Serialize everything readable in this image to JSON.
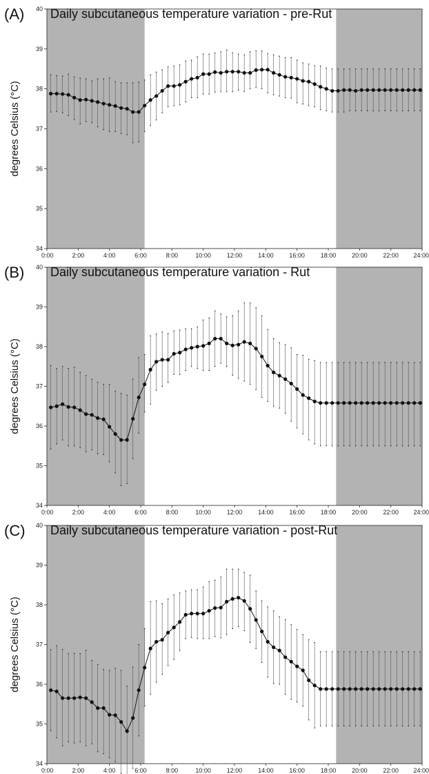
{
  "chart_data": [
    {
      "type": "line",
      "panel_label": "(A)",
      "title": "Daily subcutaneous temperature variation - pre-Rut",
      "ylabel": "degrees Celsius (°C)",
      "xlabel": "",
      "xlim": [
        0,
        24
      ],
      "ylim": [
        34,
        40
      ],
      "x_tick_labels": [
        "0:00",
        "2:00",
        "4:00",
        "6:00",
        "8:00",
        "10:00",
        "12:00",
        "14:00",
        "16:00",
        "18:00",
        "20:00",
        "22:00",
        "24:00"
      ],
      "y_tick_labels": [
        "34",
        "35",
        "36",
        "37",
        "38",
        "39",
        "40"
      ],
      "shaded_regions": [
        [
          0,
          6.25
        ],
        [
          18.5,
          24
        ]
      ],
      "series": [
        {
          "x": [
            0.25,
            0.625,
            1.0,
            1.375,
            1.75,
            2.125,
            2.5,
            2.875,
            3.25,
            3.625,
            4.0,
            4.375,
            4.75,
            5.125,
            5.5,
            5.875,
            6.25,
            6.625,
            7.0,
            7.375,
            7.75,
            8.125,
            8.5,
            8.875,
            9.25,
            9.625,
            10.0,
            10.375,
            10.75,
            11.125,
            11.5,
            11.875,
            12.25,
            12.625,
            13.0,
            13.375,
            13.75,
            14.125,
            14.5,
            14.875,
            15.25,
            15.625,
            16.0,
            16.375,
            16.75,
            17.125,
            17.5,
            17.875,
            18.25,
            18.625,
            19.0,
            19.375,
            19.75,
            20.125,
            20.5,
            20.875,
            21.25,
            21.625,
            22.0,
            22.375,
            22.75,
            23.125,
            23.5,
            23.875
          ],
          "mean": [
            37.88,
            37.88,
            37.87,
            37.85,
            37.78,
            37.72,
            37.73,
            37.7,
            37.67,
            37.63,
            37.6,
            37.57,
            37.52,
            37.5,
            37.42,
            37.42,
            37.58,
            37.72,
            37.82,
            37.95,
            38.07,
            38.07,
            38.1,
            38.18,
            38.25,
            38.28,
            38.37,
            38.37,
            38.42,
            38.4,
            38.43,
            38.43,
            38.43,
            38.4,
            38.4,
            38.47,
            38.48,
            38.48,
            38.4,
            38.35,
            38.3,
            38.28,
            38.25,
            38.2,
            38.18,
            38.12,
            38.05,
            38.0,
            37.95,
            37.95,
            37.97,
            37.97,
            37.95,
            37.97,
            37.97,
            37.97,
            37.97,
            37.97,
            37.97,
            37.97,
            37.97,
            37.97,
            37.97,
            37.97
          ],
          "upper": [
            38.35,
            38.33,
            38.32,
            38.37,
            38.3,
            38.27,
            38.25,
            38.2,
            38.25,
            38.25,
            38.27,
            38.18,
            38.15,
            38.15,
            38.15,
            38.17,
            38.22,
            38.35,
            38.42,
            38.48,
            38.55,
            38.57,
            38.6,
            38.7,
            38.72,
            38.8,
            38.87,
            38.87,
            38.9,
            38.93,
            38.97,
            38.9,
            38.87,
            38.85,
            38.93,
            38.95,
            38.95,
            38.88,
            38.85,
            38.82,
            38.78,
            38.78,
            38.72,
            38.65,
            38.62,
            38.58,
            38.57,
            38.52,
            38.5,
            38.5,
            38.5,
            38.5,
            38.5,
            38.5,
            38.5,
            38.5,
            38.5,
            38.5,
            38.5,
            38.5,
            38.5,
            38.5,
            38.5,
            38.5
          ],
          "lower": [
            37.42,
            37.43,
            37.4,
            37.33,
            37.23,
            37.12,
            37.18,
            37.15,
            37.05,
            36.98,
            36.93,
            36.93,
            36.88,
            36.85,
            36.65,
            36.67,
            36.93,
            37.08,
            37.22,
            37.4,
            37.55,
            37.58,
            37.6,
            37.67,
            37.78,
            37.78,
            37.87,
            37.87,
            37.92,
            37.93,
            37.93,
            37.93,
            37.97,
            37.93,
            38.0,
            38.03,
            38.0,
            37.9,
            37.85,
            37.82,
            37.78,
            37.77,
            37.65,
            37.62,
            37.58,
            37.55,
            37.48,
            37.45,
            37.42,
            37.42,
            37.42,
            37.45,
            37.45,
            37.45,
            37.45,
            37.45,
            37.45,
            37.45,
            37.45,
            37.45,
            37.45,
            37.45,
            37.45,
            37.45
          ]
        }
      ]
    },
    {
      "type": "line",
      "panel_label": "(B)",
      "title": "Daily subcutaneous temperature variation - Rut",
      "ylabel": "degrees Celsius (°C)",
      "xlabel": "",
      "xlim": [
        0,
        24
      ],
      "ylim": [
        34,
        40
      ],
      "x_tick_labels": [
        "0:00",
        "2:00",
        "4:00",
        "6:00",
        "8:00",
        "10:00",
        "12:00",
        "14:00",
        "16:00",
        "18:00",
        "20:00",
        "22:00",
        "24:00"
      ],
      "y_tick_labels": [
        "34",
        "35",
        "36",
        "37",
        "38",
        "39",
        "40"
      ],
      "shaded_regions": [
        [
          0,
          6.25
        ],
        [
          18.5,
          24
        ]
      ],
      "series": [
        {
          "x": [
            0.25,
            0.625,
            1.0,
            1.375,
            1.75,
            2.125,
            2.5,
            2.875,
            3.25,
            3.625,
            4.0,
            4.375,
            4.75,
            5.125,
            5.5,
            5.875,
            6.25,
            6.625,
            7.0,
            7.375,
            7.75,
            8.125,
            8.5,
            8.875,
            9.25,
            9.625,
            10.0,
            10.375,
            10.75,
            11.125,
            11.5,
            11.875,
            12.25,
            12.625,
            13.0,
            13.375,
            13.75,
            14.125,
            14.5,
            14.875,
            15.25,
            15.625,
            16.0,
            16.375,
            16.75,
            17.125,
            17.5,
            17.875,
            18.25,
            18.625,
            19.0,
            19.375,
            19.75,
            20.125,
            20.5,
            20.875,
            21.25,
            21.625,
            22.0,
            22.375,
            22.75,
            23.125,
            23.5,
            23.875
          ],
          "mean": [
            36.47,
            36.5,
            36.55,
            36.48,
            36.47,
            36.4,
            36.3,
            36.28,
            36.2,
            36.17,
            35.98,
            35.8,
            35.65,
            35.65,
            36.18,
            36.72,
            37.05,
            37.42,
            37.62,
            37.67,
            37.67,
            37.82,
            37.85,
            37.93,
            37.97,
            38.0,
            38.02,
            38.08,
            38.2,
            38.2,
            38.08,
            38.03,
            38.05,
            38.12,
            38.08,
            37.95,
            37.75,
            37.52,
            37.35,
            37.27,
            37.18,
            37.07,
            36.93,
            36.78,
            36.7,
            36.62,
            36.58,
            36.58,
            36.58,
            36.58,
            36.58,
            36.58,
            36.58,
            36.58,
            36.58,
            36.58,
            36.58,
            36.58,
            36.58,
            36.58,
            36.58,
            36.58,
            36.58,
            36.58
          ],
          "upper": [
            37.52,
            37.45,
            37.5,
            37.45,
            37.48,
            37.35,
            37.27,
            37.18,
            37.1,
            37.05,
            37.05,
            36.88,
            36.82,
            36.78,
            37.18,
            37.72,
            37.8,
            38.27,
            38.32,
            38.37,
            38.33,
            38.4,
            38.42,
            38.45,
            38.45,
            38.5,
            38.67,
            38.72,
            38.9,
            38.82,
            38.75,
            38.78,
            38.9,
            39.1,
            39.1,
            38.98,
            38.78,
            38.43,
            38.2,
            38.1,
            38.05,
            37.97,
            37.8,
            37.78,
            37.68,
            37.65,
            37.6,
            37.6,
            37.6,
            37.6,
            37.6,
            37.6,
            37.6,
            37.6,
            37.6,
            37.6,
            37.6,
            37.6,
            37.6,
            37.6,
            37.6,
            37.6,
            37.6,
            37.6
          ],
          "lower": [
            35.42,
            35.55,
            35.65,
            35.5,
            35.5,
            35.45,
            35.35,
            35.4,
            35.3,
            35.28,
            35.1,
            34.82,
            34.5,
            34.55,
            35.18,
            35.82,
            36.35,
            36.55,
            36.9,
            37.0,
            37.1,
            37.3,
            37.3,
            37.4,
            37.5,
            37.45,
            37.4,
            37.4,
            37.5,
            37.58,
            37.5,
            37.28,
            37.2,
            37.13,
            37.05,
            36.92,
            36.72,
            36.62,
            36.5,
            36.45,
            36.32,
            36.12,
            35.95,
            35.8,
            35.65,
            35.55,
            35.5,
            35.5,
            35.5,
            35.5,
            35.5,
            35.5,
            35.5,
            35.5,
            35.5,
            35.5,
            35.5,
            35.5,
            35.5,
            35.5,
            35.5,
            35.5,
            35.5,
            35.5
          ]
        }
      ]
    },
    {
      "type": "line",
      "panel_label": "(C)",
      "title": "Daily subcutaneous temperature variation - post-Rut",
      "ylabel": "degrees Celsius (°C)",
      "xlabel": "",
      "xlim": [
        0,
        24
      ],
      "ylim": [
        34,
        40
      ],
      "x_tick_labels": [
        "0:00",
        "2:00",
        "4:00",
        "6:00",
        "8:00",
        "10:00",
        "12:00",
        "14:00",
        "16:00",
        "18:00",
        "20:00",
        "22:00",
        "24:00"
      ],
      "y_tick_labels": [
        "34",
        "35",
        "36",
        "37",
        "38",
        "39",
        "40"
      ],
      "shaded_regions": [
        [
          0,
          6.25
        ],
        [
          18.5,
          24
        ]
      ],
      "series": [
        {
          "x": [
            0.25,
            0.625,
            1.0,
            1.375,
            1.75,
            2.125,
            2.5,
            2.875,
            3.25,
            3.625,
            4.0,
            4.375,
            4.75,
            5.125,
            5.5,
            5.875,
            6.25,
            6.625,
            7.0,
            7.375,
            7.75,
            8.125,
            8.5,
            8.875,
            9.25,
            9.625,
            10.0,
            10.375,
            10.75,
            11.125,
            11.5,
            11.875,
            12.25,
            12.625,
            13.0,
            13.375,
            13.75,
            14.125,
            14.5,
            14.875,
            15.25,
            15.625,
            16.0,
            16.375,
            16.75,
            17.125,
            17.5,
            17.875,
            18.25,
            18.625,
            19.0,
            19.375,
            19.75,
            20.125,
            20.5,
            20.875,
            21.25,
            21.625,
            22.0,
            22.375,
            22.75,
            23.125,
            23.5,
            23.875
          ],
          "mean": [
            35.85,
            35.82,
            35.65,
            35.65,
            35.65,
            35.67,
            35.65,
            35.55,
            35.4,
            35.4,
            35.23,
            35.22,
            35.05,
            34.82,
            35.15,
            35.85,
            36.42,
            36.9,
            37.07,
            37.12,
            37.3,
            37.43,
            37.57,
            37.75,
            37.78,
            37.78,
            37.78,
            37.85,
            37.92,
            37.93,
            38.08,
            38.15,
            38.18,
            38.1,
            37.9,
            37.62,
            37.33,
            37.07,
            36.93,
            36.85,
            36.68,
            36.57,
            36.45,
            36.35,
            36.1,
            35.97,
            35.88,
            35.88,
            35.88,
            35.88,
            35.88,
            35.88,
            35.88,
            35.88,
            35.88,
            35.88,
            35.88,
            35.88,
            35.88,
            35.88,
            35.88,
            35.88,
            35.88,
            35.88
          ],
          "upper": [
            36.87,
            36.97,
            36.88,
            36.77,
            36.78,
            36.77,
            36.85,
            36.6,
            36.5,
            36.37,
            36.35,
            36.4,
            36.35,
            35.95,
            36.43,
            37.0,
            37.4,
            38.08,
            38.1,
            38.03,
            38.15,
            38.25,
            38.3,
            38.35,
            38.38,
            38.38,
            38.45,
            38.58,
            38.62,
            38.7,
            38.9,
            38.9,
            38.9,
            38.82,
            38.75,
            38.35,
            38.1,
            37.95,
            37.85,
            37.7,
            37.63,
            37.5,
            37.38,
            37.25,
            37.12,
            37.05,
            36.82,
            36.82,
            36.82,
            36.82,
            36.82,
            36.82,
            36.82,
            36.82,
            36.82,
            36.82,
            36.82,
            36.82,
            36.82,
            36.82,
            36.82,
            36.82,
            36.82,
            36.82
          ],
          "lower": [
            34.83,
            34.65,
            34.45,
            34.55,
            34.52,
            34.55,
            34.45,
            34.5,
            34.3,
            34.25,
            34.15,
            34.05,
            33.75,
            33.7,
            33.88,
            34.7,
            35.45,
            35.75,
            36.05,
            36.25,
            36.47,
            36.62,
            36.85,
            37.15,
            37.18,
            37.15,
            37.15,
            37.15,
            37.2,
            37.17,
            37.25,
            37.4,
            37.45,
            37.35,
            37.05,
            36.9,
            36.55,
            36.18,
            36.02,
            36.0,
            35.75,
            35.62,
            35.55,
            35.45,
            35.1,
            34.9,
            34.95,
            34.95,
            34.95,
            34.95,
            34.95,
            34.95,
            34.95,
            34.95,
            34.95,
            34.95,
            34.95,
            34.95,
            34.95,
            34.95,
            34.95,
            34.95,
            34.95,
            34.95
          ]
        }
      ]
    }
  ],
  "colors": {
    "shade": "#b3b3b3",
    "line": "#111111",
    "errorbar": "#555555",
    "background": "#ffffff"
  }
}
